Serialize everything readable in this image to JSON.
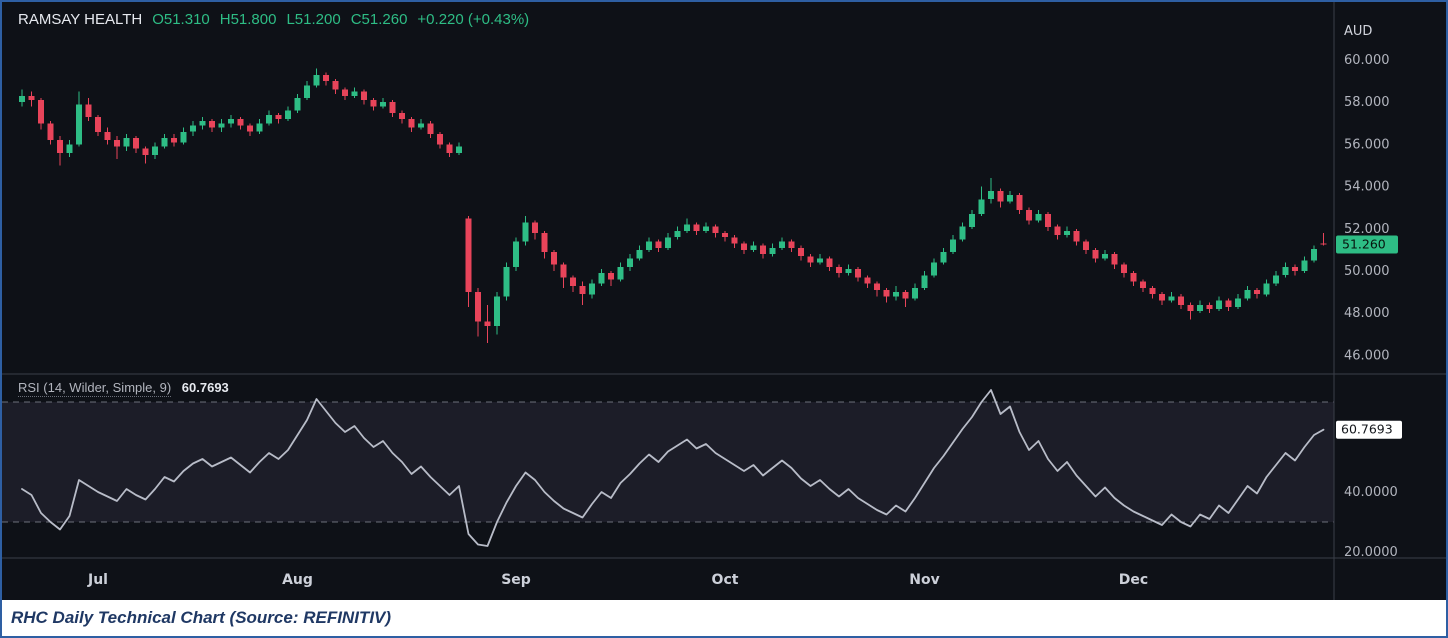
{
  "header": {
    "symbol": "RAMSAY HEALTH",
    "open": "O51.310",
    "high": "H51.800",
    "low": "L51.200",
    "close": "C51.260",
    "change": "+0.220 (+0.43%)"
  },
  "caption": "RHC Daily Technical Chart (Source: REFINITIV)",
  "colors": {
    "up": "#2ebd85",
    "down": "#e8445a",
    "rsi_line": "#b8bcc8",
    "axis_text": "#b2b5be",
    "month_text": "#ccd0d9",
    "currency_text": "#d1d4dc",
    "background": "#0e1117",
    "divider": "#3a3e49",
    "band_fill": "#9b8ec4",
    "dashed_line": "#8a8e99",
    "price_badge_bg": "#2ebd85",
    "price_badge_text": "#07130d",
    "rsi_badge_bg": "#ffffff",
    "rsi_badge_text": "#14171c",
    "frame_border": "#2e5fa3"
  },
  "chart_data": {
    "type": "candlestick",
    "title": "RAMSAY HEALTH",
    "currency": "AUD",
    "price_axis_ticks": [
      "60.000",
      "58.000",
      "56.000",
      "54.000",
      "52.000",
      "50.000",
      "48.000",
      "46.000"
    ],
    "last_price_label": "51.260",
    "last_price": 51.26,
    "price_view_range": [
      45.12,
      62.75
    ],
    "rsi_view_range": [
      18,
      79.333
    ],
    "x_ticks": [
      {
        "label": "Jul",
        "i": 8
      },
      {
        "label": "Aug",
        "i": 29
      },
      {
        "label": "Sep",
        "i": 52
      },
      {
        "label": "Oct",
        "i": 74
      },
      {
        "label": "Nov",
        "i": 95
      },
      {
        "label": "Dec",
        "i": 117
      }
    ],
    "ohlc": [
      [
        58.0,
        58.6,
        57.8,
        58.3
      ],
      [
        58.3,
        58.5,
        57.8,
        58.1
      ],
      [
        58.1,
        58.2,
        56.7,
        57.0
      ],
      [
        57.0,
        57.1,
        56.0,
        56.2
      ],
      [
        56.2,
        56.4,
        55.0,
        55.6
      ],
      [
        55.6,
        56.2,
        55.4,
        56.0
      ],
      [
        56.0,
        58.5,
        55.9,
        57.9
      ],
      [
        57.9,
        58.2,
        57.1,
        57.3
      ],
      [
        57.3,
        57.4,
        56.4,
        56.6
      ],
      [
        56.6,
        56.8,
        56.0,
        56.2
      ],
      [
        56.2,
        56.4,
        55.3,
        55.9
      ],
      [
        55.9,
        56.5,
        55.7,
        56.3
      ],
      [
        56.3,
        56.4,
        55.6,
        55.8
      ],
      [
        55.8,
        55.9,
        55.1,
        55.5
      ],
      [
        55.5,
        56.1,
        55.3,
        55.9
      ],
      [
        55.9,
        56.5,
        55.8,
        56.3
      ],
      [
        56.3,
        56.5,
        55.9,
        56.1
      ],
      [
        56.1,
        56.8,
        56.0,
        56.6
      ],
      [
        56.6,
        57.1,
        56.4,
        56.9
      ],
      [
        56.9,
        57.3,
        56.7,
        57.1
      ],
      [
        57.1,
        57.2,
        56.6,
        56.8
      ],
      [
        56.8,
        57.2,
        56.6,
        57.0
      ],
      [
        57.0,
        57.4,
        56.8,
        57.2
      ],
      [
        57.2,
        57.3,
        56.7,
        56.9
      ],
      [
        56.9,
        57.0,
        56.4,
        56.6
      ],
      [
        56.6,
        57.2,
        56.5,
        57.0
      ],
      [
        57.0,
        57.6,
        56.9,
        57.4
      ],
      [
        57.4,
        57.5,
        57.0,
        57.2
      ],
      [
        57.2,
        57.8,
        57.1,
        57.6
      ],
      [
        57.6,
        58.4,
        57.5,
        58.2
      ],
      [
        58.2,
        59.0,
        58.1,
        58.8
      ],
      [
        58.8,
        59.6,
        58.7,
        59.3
      ],
      [
        59.3,
        59.4,
        58.8,
        59.0
      ],
      [
        59.0,
        59.1,
        58.4,
        58.6
      ],
      [
        58.6,
        58.7,
        58.1,
        58.3
      ],
      [
        58.3,
        58.7,
        58.2,
        58.5
      ],
      [
        58.5,
        58.6,
        57.9,
        58.1
      ],
      [
        58.1,
        58.2,
        57.6,
        57.8
      ],
      [
        57.8,
        58.2,
        57.7,
        58.0
      ],
      [
        58.0,
        58.1,
        57.3,
        57.5
      ],
      [
        57.5,
        57.6,
        57.0,
        57.2
      ],
      [
        57.2,
        57.3,
        56.6,
        56.8
      ],
      [
        56.8,
        57.2,
        56.7,
        57.0
      ],
      [
        57.0,
        57.1,
        56.3,
        56.5
      ],
      [
        56.5,
        56.6,
        55.8,
        56.0
      ],
      [
        56.0,
        56.1,
        55.4,
        55.6
      ],
      [
        55.6,
        56.1,
        55.5,
        55.9
      ],
      [
        52.5,
        52.6,
        48.3,
        49.0
      ],
      [
        49.0,
        49.2,
        46.9,
        47.6
      ],
      [
        47.6,
        48.4,
        46.6,
        47.4
      ],
      [
        47.4,
        49.0,
        47.0,
        48.8
      ],
      [
        48.8,
        50.4,
        48.6,
        50.2
      ],
      [
        50.2,
        51.6,
        50.0,
        51.4
      ],
      [
        51.4,
        52.6,
        51.2,
        52.3
      ],
      [
        52.3,
        52.4,
        51.5,
        51.8
      ],
      [
        51.8,
        51.9,
        50.6,
        50.9
      ],
      [
        50.9,
        51.0,
        50.0,
        50.3
      ],
      [
        50.3,
        50.4,
        49.2,
        49.7
      ],
      [
        49.7,
        49.8,
        49.0,
        49.3
      ],
      [
        49.3,
        49.5,
        48.4,
        48.9
      ],
      [
        48.9,
        49.6,
        48.7,
        49.4
      ],
      [
        49.4,
        50.1,
        49.3,
        49.9
      ],
      [
        49.9,
        50.0,
        49.3,
        49.6
      ],
      [
        49.6,
        50.4,
        49.5,
        50.2
      ],
      [
        50.2,
        50.8,
        50.0,
        50.6
      ],
      [
        50.6,
        51.2,
        50.5,
        51.0
      ],
      [
        51.0,
        51.6,
        50.9,
        51.4
      ],
      [
        51.4,
        51.5,
        50.9,
        51.1
      ],
      [
        51.1,
        51.8,
        51.0,
        51.6
      ],
      [
        51.6,
        52.1,
        51.5,
        51.9
      ],
      [
        51.9,
        52.5,
        51.8,
        52.2
      ],
      [
        52.2,
        52.3,
        51.7,
        51.9
      ],
      [
        51.9,
        52.3,
        51.8,
        52.1
      ],
      [
        52.1,
        52.2,
        51.6,
        51.8
      ],
      [
        51.8,
        51.9,
        51.4,
        51.6
      ],
      [
        51.6,
        51.7,
        51.1,
        51.3
      ],
      [
        51.3,
        51.4,
        50.8,
        51.0
      ],
      [
        51.0,
        51.4,
        50.9,
        51.2
      ],
      [
        51.2,
        51.3,
        50.6,
        50.8
      ],
      [
        50.8,
        51.3,
        50.7,
        51.1
      ],
      [
        51.1,
        51.6,
        51.0,
        51.4
      ],
      [
        51.4,
        51.5,
        50.9,
        51.1
      ],
      [
        51.1,
        51.2,
        50.5,
        50.7
      ],
      [
        50.7,
        50.8,
        50.2,
        50.4
      ],
      [
        50.4,
        50.8,
        50.3,
        50.6
      ],
      [
        50.6,
        50.7,
        50.0,
        50.2
      ],
      [
        50.2,
        50.3,
        49.7,
        49.9
      ],
      [
        49.9,
        50.3,
        49.8,
        50.1
      ],
      [
        50.1,
        50.2,
        49.5,
        49.7
      ],
      [
        49.7,
        49.8,
        49.2,
        49.4
      ],
      [
        49.4,
        49.5,
        48.8,
        49.1
      ],
      [
        49.1,
        49.2,
        48.5,
        48.8
      ],
      [
        48.8,
        49.3,
        48.6,
        49.0
      ],
      [
        49.0,
        49.1,
        48.3,
        48.7
      ],
      [
        48.7,
        49.4,
        48.6,
        49.2
      ],
      [
        49.2,
        50.0,
        49.1,
        49.8
      ],
      [
        49.8,
        50.6,
        49.7,
        50.4
      ],
      [
        50.4,
        51.1,
        50.3,
        50.9
      ],
      [
        50.9,
        51.7,
        50.8,
        51.5
      ],
      [
        51.5,
        52.3,
        51.4,
        52.1
      ],
      [
        52.1,
        52.9,
        52.0,
        52.7
      ],
      [
        52.7,
        54.0,
        52.6,
        53.4
      ],
      [
        53.4,
        54.4,
        53.2,
        53.8
      ],
      [
        53.8,
        53.9,
        53.0,
        53.3
      ],
      [
        53.3,
        53.8,
        53.2,
        53.6
      ],
      [
        53.6,
        53.7,
        52.7,
        52.9
      ],
      [
        52.9,
        53.0,
        52.2,
        52.4
      ],
      [
        52.4,
        52.9,
        52.3,
        52.7
      ],
      [
        52.7,
        52.8,
        51.9,
        52.1
      ],
      [
        52.1,
        52.2,
        51.5,
        51.7
      ],
      [
        51.7,
        52.1,
        51.6,
        51.9
      ],
      [
        51.9,
        52.0,
        51.2,
        51.4
      ],
      [
        51.4,
        51.5,
        50.8,
        51.0
      ],
      [
        51.0,
        51.1,
        50.4,
        50.6
      ],
      [
        50.6,
        51.0,
        50.5,
        50.8
      ],
      [
        50.8,
        50.9,
        50.1,
        50.3
      ],
      [
        50.3,
        50.4,
        49.7,
        49.9
      ],
      [
        49.9,
        50.0,
        49.3,
        49.5
      ],
      [
        49.5,
        49.6,
        49.0,
        49.2
      ],
      [
        49.2,
        49.3,
        48.7,
        48.9
      ],
      [
        48.9,
        49.0,
        48.4,
        48.6
      ],
      [
        48.6,
        49.0,
        48.5,
        48.8
      ],
      [
        48.8,
        48.9,
        48.2,
        48.4
      ],
      [
        48.4,
        48.5,
        47.7,
        48.1
      ],
      [
        48.1,
        48.6,
        48.0,
        48.4
      ],
      [
        48.4,
        48.5,
        48.0,
        48.2
      ],
      [
        48.2,
        48.8,
        48.1,
        48.6
      ],
      [
        48.6,
        48.7,
        48.1,
        48.3
      ],
      [
        48.3,
        48.9,
        48.2,
        48.7
      ],
      [
        48.7,
        49.3,
        48.6,
        49.1
      ],
      [
        49.1,
        49.2,
        48.7,
        48.9
      ],
      [
        48.9,
        49.6,
        48.8,
        49.4
      ],
      [
        49.4,
        50.0,
        49.3,
        49.8
      ],
      [
        49.8,
        50.4,
        49.7,
        50.2
      ],
      [
        50.2,
        50.3,
        49.8,
        50.0
      ],
      [
        50.0,
        50.7,
        49.9,
        50.5
      ],
      [
        50.5,
        51.2,
        50.4,
        51.04
      ],
      [
        51.31,
        51.8,
        51.2,
        51.26
      ]
    ],
    "rsi": {
      "label": "RSI (14, Wilder, Simple, 9)",
      "value_label": "60.7693",
      "value": 60.7693,
      "upper_band": 70,
      "lower_band": 30,
      "axis_ticks": [
        {
          "label": "40.0000",
          "v": 40
        },
        {
          "label": "20.0000",
          "v": 20
        }
      ],
      "values": [
        41,
        39,
        33,
        30,
        27.5,
        32,
        44,
        42,
        40,
        38.5,
        37,
        41,
        39,
        37.5,
        41,
        45,
        43.5,
        47,
        49.5,
        51,
        48.5,
        50,
        51.5,
        49,
        46.5,
        50,
        53,
        51,
        54,
        59,
        64,
        71,
        67,
        63,
        60,
        62,
        58,
        55,
        57,
        53,
        50,
        46,
        48.5,
        45,
        42,
        39,
        42,
        26,
        22.5,
        22,
        30,
        36.5,
        42,
        46.5,
        44,
        40,
        37,
        34.5,
        33,
        31.5,
        36,
        40,
        38,
        43,
        46,
        49.5,
        52.5,
        50,
        53.5,
        55.5,
        57.5,
        54.5,
        56,
        53,
        51,
        49,
        47,
        49,
        45.5,
        48,
        50.5,
        48,
        44.5,
        42,
        44,
        41,
        38.5,
        41,
        38,
        36,
        34,
        32.5,
        35.5,
        33.5,
        38,
        43,
        48,
        52,
        56.5,
        61,
        65,
        70,
        74,
        66,
        68.5,
        60,
        54,
        57,
        51,
        47,
        50,
        45.5,
        42,
        38.5,
        41.5,
        38,
        35.5,
        33.5,
        32,
        30.5,
        29,
        32.5,
        30,
        28.5,
        32.5,
        31,
        35.5,
        33,
        37.5,
        42,
        39.5,
        45,
        49,
        53,
        50.5,
        55,
        59,
        60.7693
      ]
    }
  }
}
